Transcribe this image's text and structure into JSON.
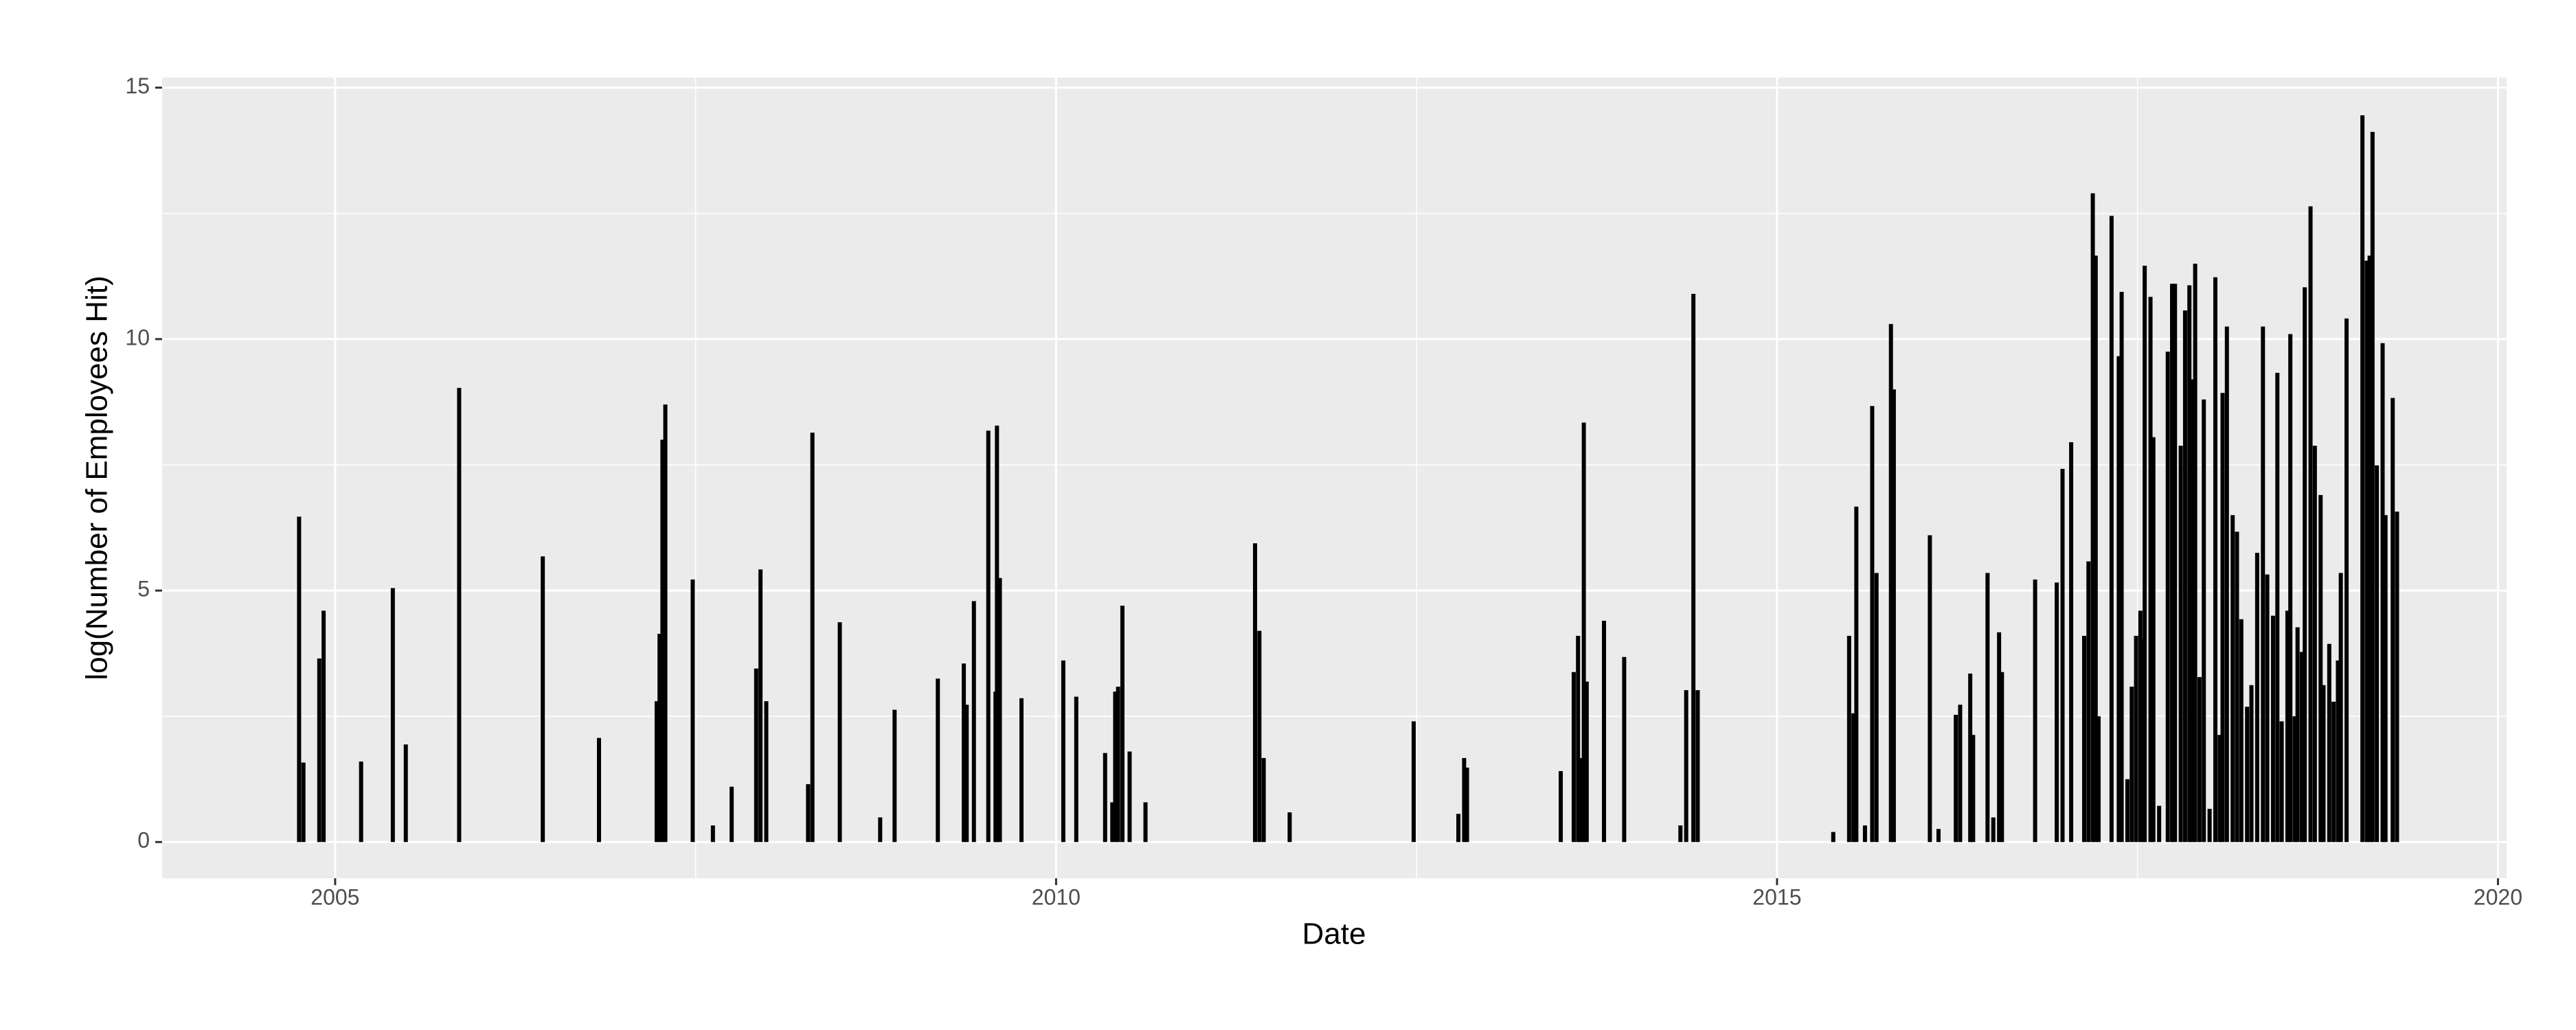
{
  "chart_data": {
    "type": "bar",
    "xlabel": "Date",
    "ylabel": "log(Number of Employees Hit)",
    "color": "#000000",
    "grid": true,
    "xlim": [
      2003.8,
      2020.06
    ],
    "ylim": [
      -0.72,
      15.2
    ],
    "xticks": [
      2005,
      2010,
      2015,
      2020
    ],
    "yticks": [
      0,
      5,
      10,
      15
    ],
    "x": [
      2004.75,
      2004.78,
      2004.89,
      2004.92,
      2005.18,
      2005.4,
      2005.49,
      2005.86,
      2006.44,
      2006.83,
      2007.23,
      2007.25,
      2007.27,
      2007.29,
      2007.48,
      2007.62,
      2007.75,
      2007.92,
      2007.95,
      2007.99,
      2008.28,
      2008.31,
      2008.5,
      2008.78,
      2008.88,
      2009.18,
      2009.36,
      2009.38,
      2009.43,
      2009.53,
      2009.58,
      2009.59,
      2009.61,
      2009.76,
      2010.05,
      2010.14,
      2010.34,
      2010.39,
      2010.41,
      2010.43,
      2010.46,
      2010.51,
      2010.62,
      2011.38,
      2011.41,
      2011.44,
      2011.62,
      2012.48,
      2012.79,
      2012.83,
      2012.85,
      2013.5,
      2013.59,
      2013.62,
      2013.64,
      2013.66,
      2013.68,
      2013.8,
      2013.94,
      2014.33,
      2014.37,
      2014.42,
      2014.45,
      2015.39,
      2015.5,
      2015.53,
      2015.55,
      2015.61,
      2015.66,
      2015.69,
      2015.79,
      2015.81,
      2016.06,
      2016.12,
      2016.24,
      2016.27,
      2016.34,
      2016.36,
      2016.46,
      2016.5,
      2016.54,
      2016.56,
      2016.79,
      2016.94,
      2016.98,
      2017.04,
      2017.13,
      2017.16,
      2017.19,
      2017.21,
      2017.23,
      2017.32,
      2017.37,
      2017.39,
      2017.43,
      2017.46,
      2017.49,
      2017.52,
      2017.54,
      2017.55,
      2017.59,
      2017.61,
      2017.65,
      2017.71,
      2017.74,
      2017.76,
      2017.8,
      2017.83,
      2017.86,
      2017.88,
      2017.9,
      2017.93,
      2017.96,
      2018.0,
      2018.04,
      2018.07,
      2018.09,
      2018.12,
      2018.16,
      2018.19,
      2018.22,
      2018.26,
      2018.29,
      2018.33,
      2018.37,
      2018.4,
      2018.44,
      2018.47,
      2018.5,
      2018.54,
      2018.56,
      2018.59,
      2018.61,
      2018.64,
      2018.66,
      2018.7,
      2018.73,
      2018.77,
      2018.79,
      2018.83,
      2018.86,
      2018.89,
      2018.91,
      2018.95,
      2019.06,
      2019.09,
      2019.11,
      2019.13,
      2019.16,
      2019.2,
      2019.22,
      2019.27,
      2019.3
    ],
    "values": [
      6.47,
      1.58,
      3.65,
      4.6,
      1.6,
      5.05,
      1.94,
      9.03,
      5.68,
      2.07,
      2.8,
      4.14,
      8.0,
      8.7,
      5.22,
      0.33,
      1.1,
      3.45,
      5.42,
      2.8,
      1.15,
      8.14,
      4.37,
      0.49,
      2.63,
      3.25,
      3.55,
      2.73,
      4.79,
      8.18,
      2.99,
      8.28,
      5.25,
      2.86,
      3.61,
      2.89,
      1.77,
      0.79,
      2.99,
      3.09,
      4.7,
      1.8,
      0.79,
      5.94,
      4.2,
      1.67,
      0.59,
      2.4,
      0.56,
      1.67,
      1.48,
      1.41,
      3.38,
      4.1,
      1.67,
      8.34,
      3.19,
      4.4,
      3.68,
      0.33,
      3.02,
      10.9,
      3.02,
      0.2,
      4.1,
      2.56,
      6.67,
      0.33,
      8.67,
      5.35,
      10.3,
      9.0,
      6.1,
      0.26,
      2.53,
      2.73,
      3.35,
      2.13,
      5.35,
      0.49,
      4.17,
      3.38,
      5.22,
      5.16,
      7.42,
      7.95,
      4.1,
      5.58,
      12.9,
      11.66,
      2.5,
      12.45,
      9.66,
      10.94,
      1.25,
      3.09,
      4.1,
      4.6,
      4.04,
      11.46,
      10.84,
      8.05,
      0.72,
      9.75,
      11.1,
      11.1,
      7.88,
      10.57,
      11.07,
      9.2,
      11.5,
      3.28,
      8.8,
      0.66,
      11.23,
      2.13,
      8.93,
      10.25,
      6.5,
      6.17,
      4.43,
      2.69,
      3.12,
      5.75,
      10.25,
      5.32,
      4.5,
      9.33,
      2.4,
      4.6,
      10.1,
      2.5,
      4.27,
      3.78,
      11.03,
      12.64,
      7.88,
      6.9,
      3.12,
      3.94,
      2.79,
      3.61,
      5.35,
      10.41,
      14.45,
      11.56,
      11.66,
      14.12,
      7.49,
      9.92,
      6.5,
      8.83,
      6.57
    ]
  }
}
